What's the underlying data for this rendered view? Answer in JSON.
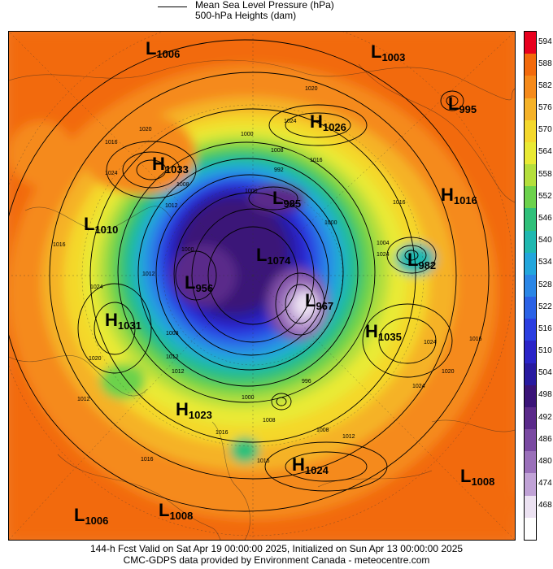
{
  "legend": {
    "line1": "Mean Sea Level Pressure (hPa)",
    "line2": "500-hPa Heights (dam)"
  },
  "colorbar": [
    {
      "label": "594",
      "color": "#e8001e"
    },
    {
      "label": "588",
      "color": "#f26a0c"
    },
    {
      "label": "582",
      "color": "#f58a1a"
    },
    {
      "label": "576",
      "color": "#f5b228"
    },
    {
      "label": "570",
      "color": "#f4d82c"
    },
    {
      "label": "564",
      "color": "#e9ea34"
    },
    {
      "label": "558",
      "color": "#b4df3c"
    },
    {
      "label": "552",
      "color": "#6cd24c"
    },
    {
      "label": "546",
      "color": "#2fc07a"
    },
    {
      "label": "540",
      "color": "#1fb8b0"
    },
    {
      "label": "534",
      "color": "#22a6dc"
    },
    {
      "label": "528",
      "color": "#2a86e6"
    },
    {
      "label": "522",
      "color": "#2a62e6"
    },
    {
      "label": "516",
      "color": "#2a3ee0"
    },
    {
      "label": "510",
      "color": "#2a24c8"
    },
    {
      "label": "504",
      "color": "#281aa0"
    },
    {
      "label": "498",
      "color": "#3a1478"
    },
    {
      "label": "492",
      "color": "#5a2a8a"
    },
    {
      "label": "486",
      "color": "#7a4aa2"
    },
    {
      "label": "480",
      "color": "#9a70ba"
    },
    {
      "label": "474",
      "color": "#c0a2d6"
    },
    {
      "label": "468",
      "color": "#ece2f2"
    },
    {
      "label": "",
      "color": "#ffffff"
    }
  ],
  "pressure_centers": [
    {
      "type": "L",
      "value": "1006"
    },
    {
      "type": "L",
      "value": "1003"
    },
    {
      "type": "L",
      "value": "995"
    },
    {
      "type": "H",
      "value": "1026"
    },
    {
      "type": "H",
      "value": "1033"
    },
    {
      "type": "L",
      "value": "985"
    },
    {
      "type": "H",
      "value": "1016"
    },
    {
      "type": "L",
      "value": "1010"
    },
    {
      "type": "L",
      "value": "982"
    },
    {
      "type": "L",
      "value": "1074"
    },
    {
      "type": "L",
      "value": "956"
    },
    {
      "type": "L",
      "value": "967"
    },
    {
      "type": "H",
      "value": "1031"
    },
    {
      "type": "H",
      "value": "1035"
    },
    {
      "type": "H",
      "value": "1023"
    },
    {
      "type": "H",
      "value": "1024"
    },
    {
      "type": "L",
      "value": "1008"
    },
    {
      "type": "L",
      "value": "1006"
    },
    {
      "type": "L",
      "value": "1008"
    }
  ],
  "isobar_labels": [
    "1020",
    "1024",
    "1000",
    "1016",
    "1016",
    "1024",
    "992",
    "1008",
    "1000",
    "1012",
    "1016",
    "1024",
    "1012",
    "1000",
    "1016",
    "1024",
    "1016",
    "1024",
    "1020",
    "1008",
    "1012",
    "996",
    "1000",
    "1008",
    "1020",
    "1012",
    "1024",
    "1016",
    "1008",
    "1012",
    "1016",
    "1016",
    "1012",
    "1000",
    "1008",
    "1020",
    "1004"
  ],
  "footer": {
    "line1": "144-h Fcst Valid on Sat Apr 19 00:00:00 2025, Initialized on Sun Apr 13 00:00:00 2025",
    "line2": "CMC-GDPS data provided by Environment Canada - meteocentre.com"
  }
}
